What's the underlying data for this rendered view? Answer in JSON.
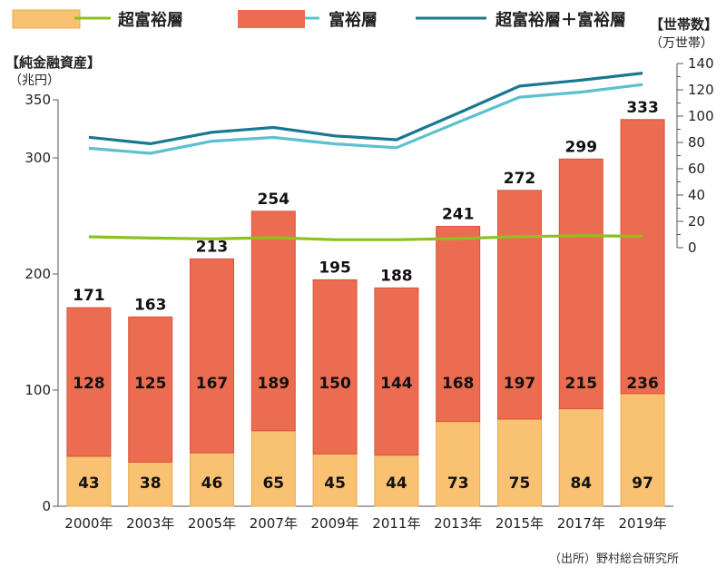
{
  "legend": {
    "ultra_label": "超富裕層",
    "wealthy_label": "富裕層",
    "combined_label": "超富裕層＋富裕層"
  },
  "left_axis": {
    "title": "【純金融資産】",
    "unit": "（兆円）"
  },
  "right_axis": {
    "title": "【世帯数】",
    "unit": "（万世帯）"
  },
  "source": "（出所）野村総合研究所",
  "colors": {
    "ultra_bar": "#f9c273",
    "wealthy_bar": "#ec6c52",
    "ultra_line": "#8cc11f",
    "wealthy_line": "#5bc0cf",
    "combined_line": "#1a7791"
  },
  "chart_data": {
    "type": "bar",
    "categories": [
      "2000年",
      "2003年",
      "2005年",
      "2007年",
      "2009年",
      "2011年",
      "2013年",
      "2015年",
      "2017年",
      "2019年"
    ],
    "series": [
      {
        "name": "超富裕層",
        "values": [
          43,
          38,
          46,
          65,
          45,
          44,
          73,
          75,
          84,
          97
        ]
      },
      {
        "name": "富裕層",
        "values": [
          128,
          125,
          167,
          189,
          150,
          144,
          168,
          197,
          215,
          236
        ]
      }
    ],
    "totals": [
      171,
      163,
      213,
      254,
      195,
      188,
      241,
      272,
      299,
      333
    ],
    "ylim": [
      0,
      350
    ],
    "yticks": [
      0,
      100,
      200,
      300,
      350
    ],
    "lines": {
      "ylim": [
        0,
        140
      ],
      "yticks": [
        0,
        10,
        20,
        30,
        40,
        50,
        60,
        70,
        80,
        90,
        100,
        110,
        120,
        130,
        140
      ],
      "series": [
        {
          "name": "超富裕層",
          "values": [
            8.3,
            7.3,
            6.7,
            7.6,
            6.1,
            6.1,
            6.9,
            8.4,
            9.0,
            8.7
          ]
        },
        {
          "name": "富裕層",
          "values": [
            75.6,
            71.7,
            81.0,
            83.8,
            78.9,
            76.0,
            95.3,
            114.4,
            118.3,
            124.0
          ]
        },
        {
          "name": "超富裕層＋富裕層",
          "values": [
            83.9,
            79.0,
            87.7,
            91.4,
            85.0,
            82.1,
            102.2,
            122.8,
            127.3,
            132.7
          ]
        }
      ]
    }
  }
}
